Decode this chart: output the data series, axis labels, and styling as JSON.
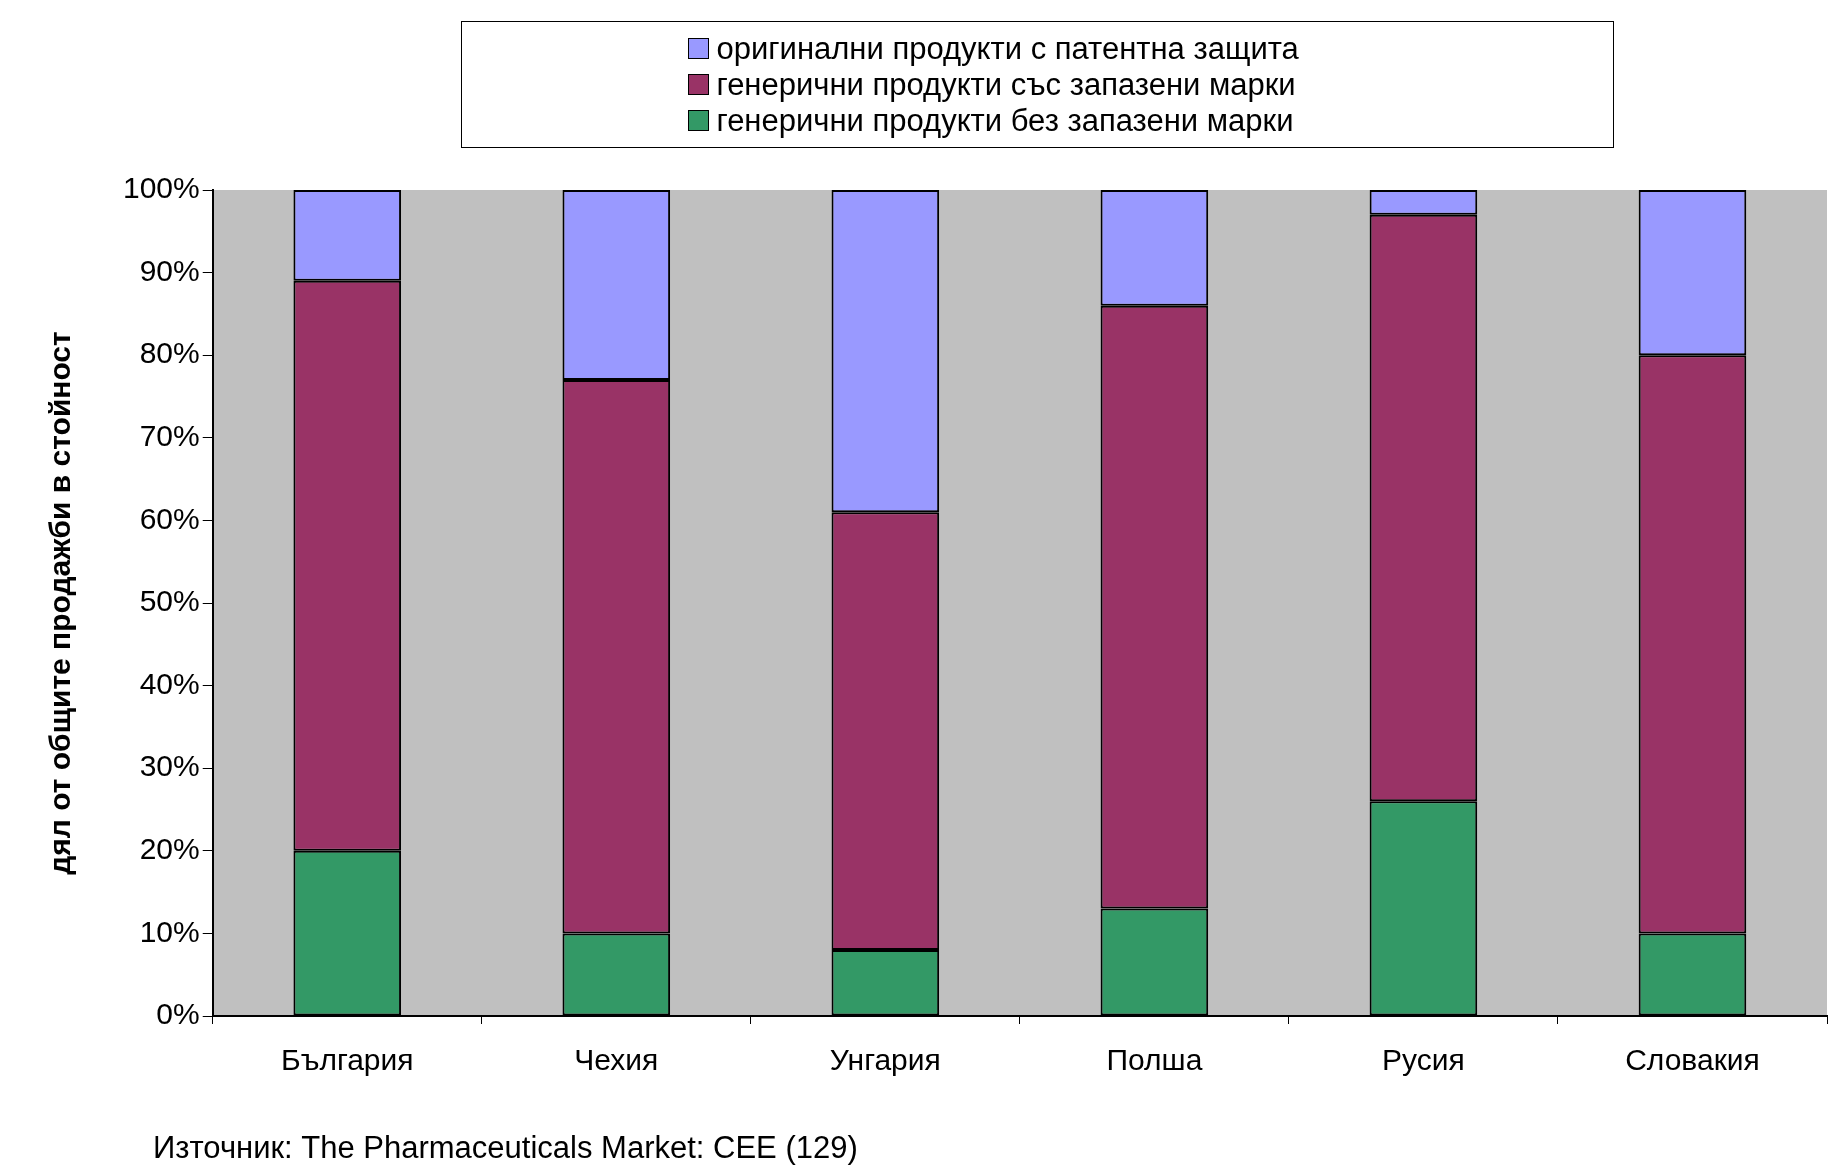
{
  "chart_data": {
    "type": "bar",
    "stacked": true,
    "ylabel": "дял от общите продажби в стойност",
    "categories": [
      "България",
      "Чехия",
      "Унгария",
      "Полша",
      "Русия",
      "Словакия"
    ],
    "series": [
      {
        "name": "генерични продукти без запазени марки",
        "color": "#339966",
        "values": [
          20,
          10,
          8,
          13,
          26,
          10
        ]
      },
      {
        "name": "генерични продукти със запазени марки",
        "color": "#993366",
        "values": [
          69,
          67,
          53,
          73,
          71,
          70
        ]
      },
      {
        "name": "оригинални продукти с патентна защита",
        "color": "#9999ff",
        "values": [
          11,
          23,
          39,
          14,
          3,
          20
        ]
      }
    ],
    "ylim": [
      0,
      100
    ],
    "yticks": [
      {
        "value": 0,
        "label": "0%"
      },
      {
        "value": 10,
        "label": "10%"
      },
      {
        "value": 20,
        "label": "20%"
      },
      {
        "value": 30,
        "label": "30%"
      },
      {
        "value": 40,
        "label": "40%"
      },
      {
        "value": 50,
        "label": "50%"
      },
      {
        "value": 60,
        "label": "60%"
      },
      {
        "value": 70,
        "label": "70%"
      },
      {
        "value": 80,
        "label": "80%"
      },
      {
        "value": 90,
        "label": "90%"
      },
      {
        "value": 100,
        "label": "100%"
      }
    ],
    "grid": false,
    "legend": "top",
    "annotations": [
      "Източник: The Pharmaceuticals Market: CEE (129)"
    ]
  }
}
